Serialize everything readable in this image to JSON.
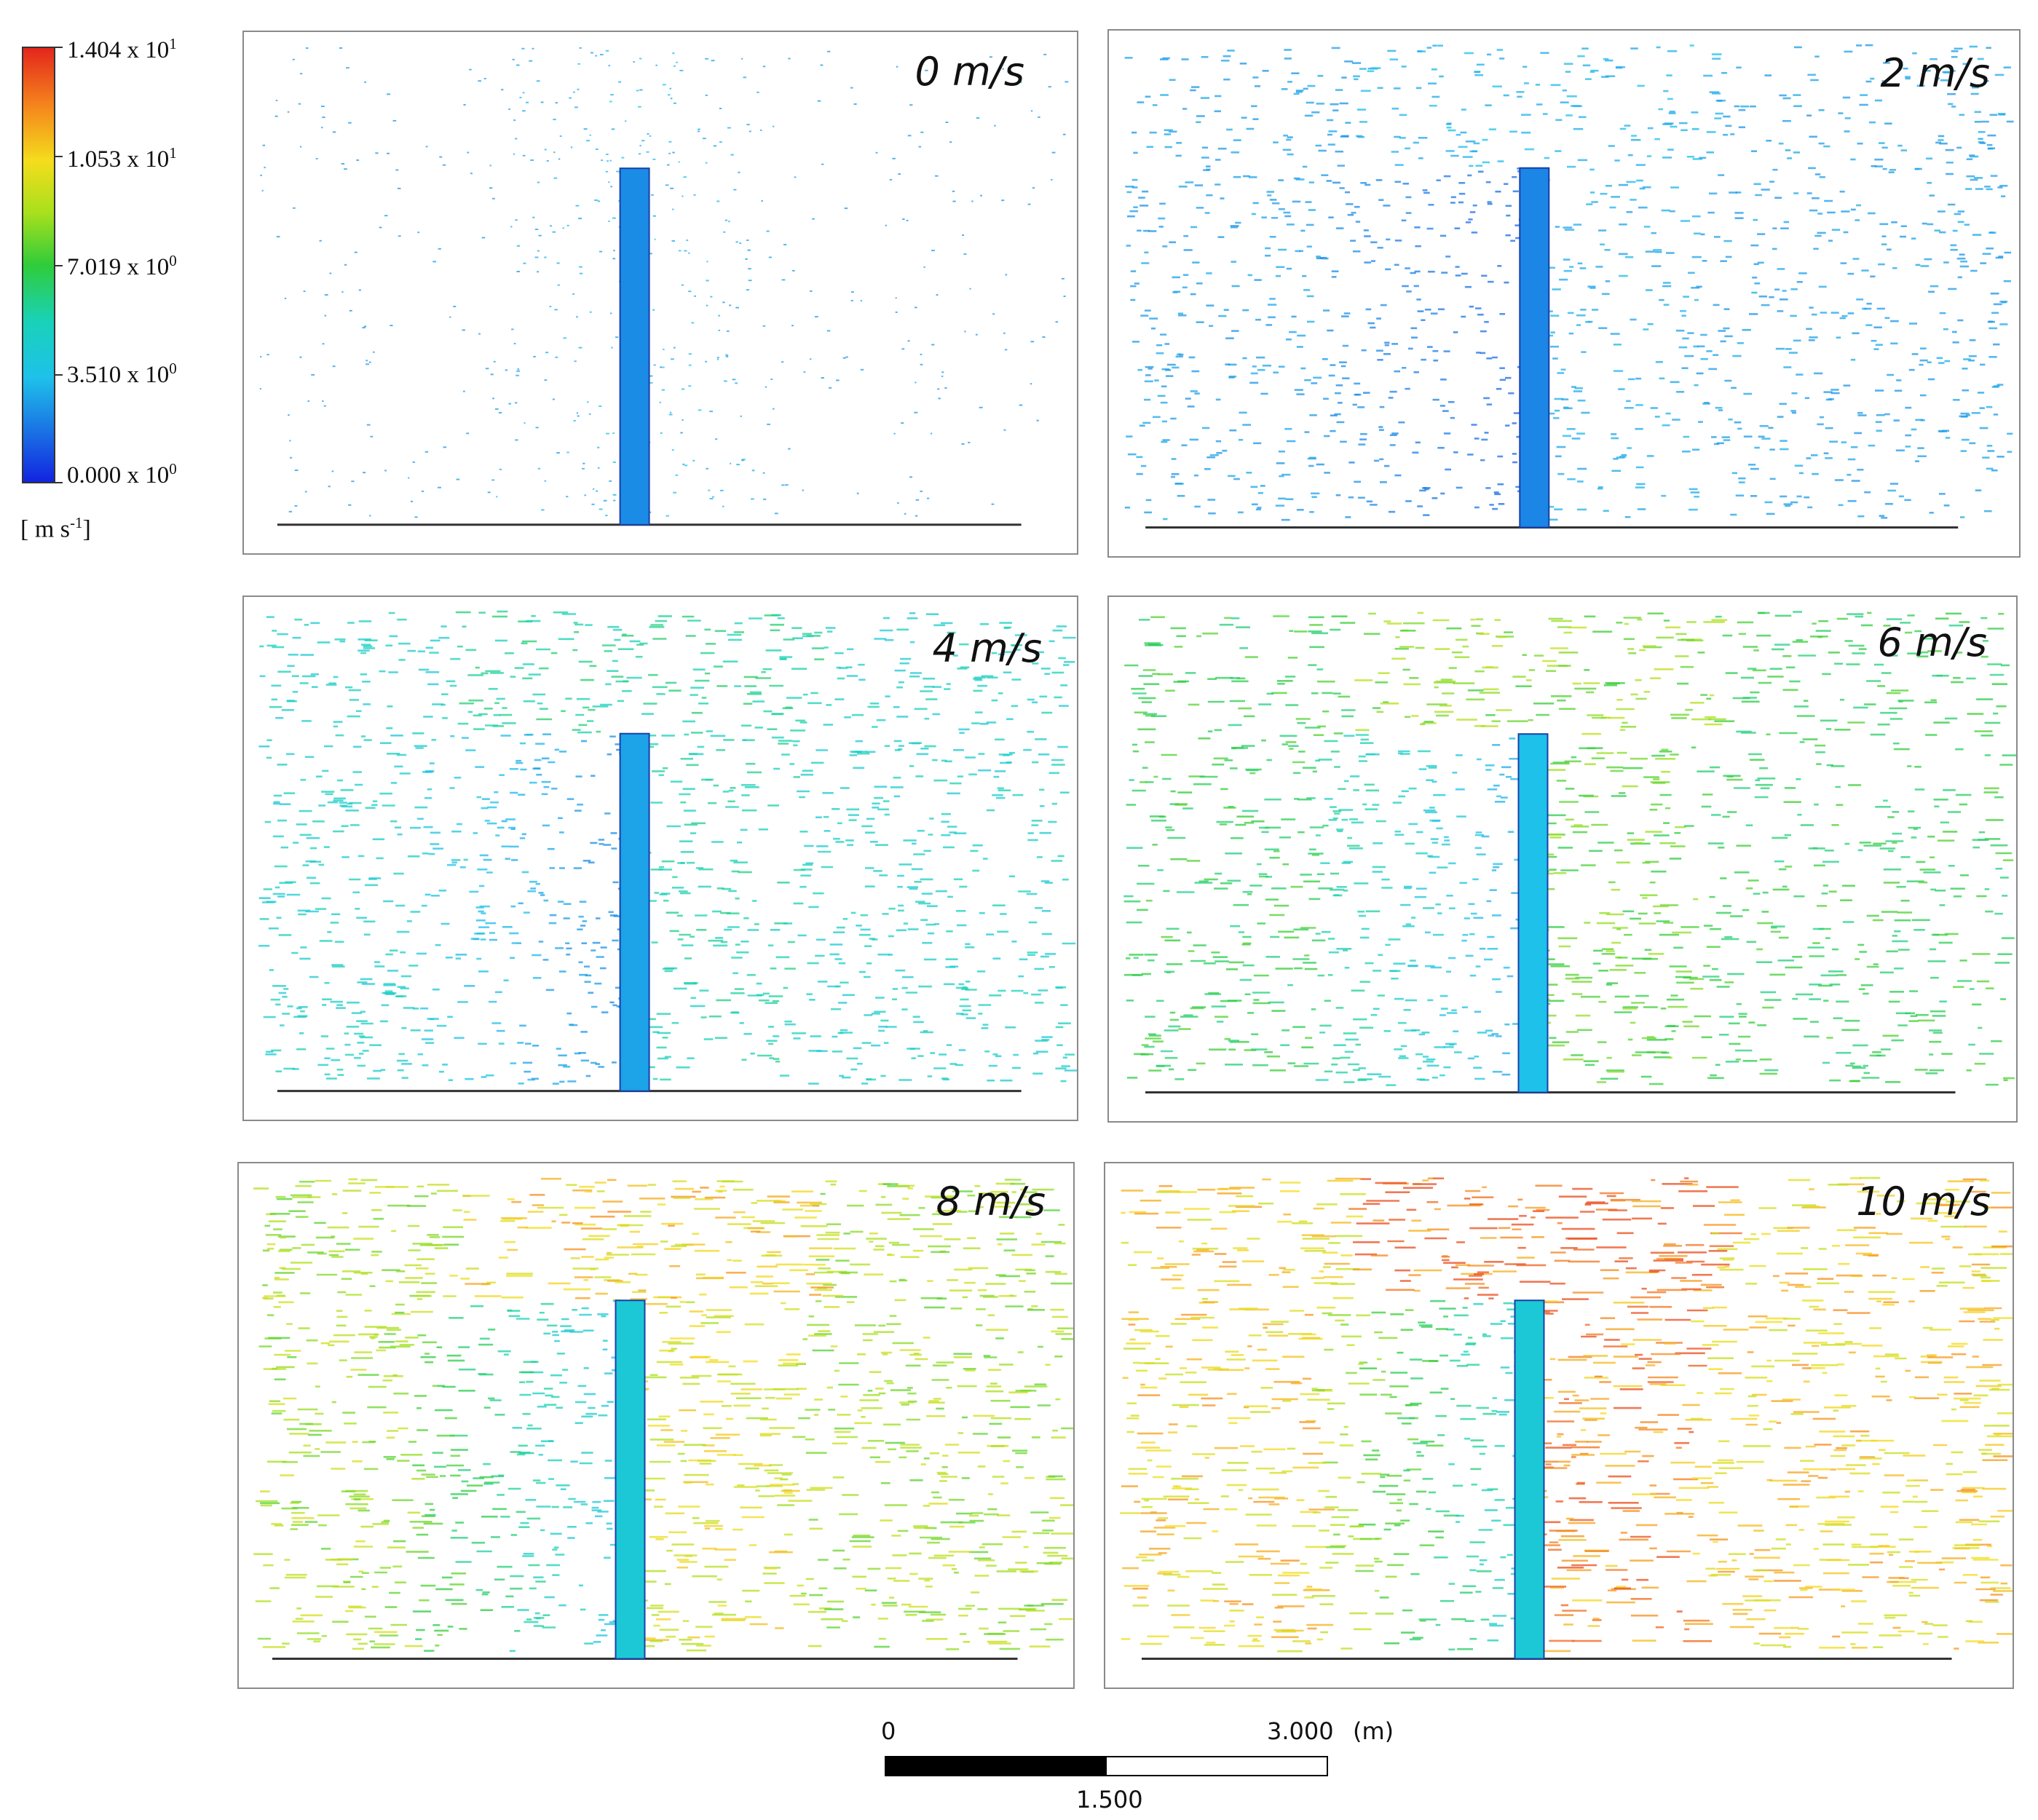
{
  "legend": {
    "labels": [
      {
        "mantissa": "1.404 x 10",
        "exponent": "1",
        "value": 14.04
      },
      {
        "mantissa": "1.053 x 10",
        "exponent": "1",
        "value": 10.53
      },
      {
        "mantissa": "7.019 x 10",
        "exponent": "0",
        "value": 7.019
      },
      {
        "mantissa": "3.510 x 10",
        "exponent": "0",
        "value": 3.51
      },
      {
        "mantissa": "0.000 x 10",
        "exponent": "0",
        "value": 0.0
      }
    ],
    "unit_prefix": "[ m s",
    "unit_exponent": "-1",
    "unit_suffix": "]",
    "colors": [
      "#e4261c",
      "#f58a1c",
      "#f4dd1c",
      "#a8e01c",
      "#2fcc3a",
      "#19d2b8",
      "#1ec1ea",
      "#1a74e4",
      "#1224e0"
    ]
  },
  "panels": [
    {
      "title": "0 m/s",
      "wind_speed": 0
    },
    {
      "title": "2 m/s",
      "wind_speed": 2
    },
    {
      "title": "4 m/s",
      "wind_speed": 4
    },
    {
      "title": "6 m/s",
      "wind_speed": 6
    },
    {
      "title": "8 m/s",
      "wind_speed": 8
    },
    {
      "title": "10 m/s",
      "wind_speed": 10
    }
  ],
  "scale_bar": {
    "label_start": "0",
    "label_mid": "1.500",
    "label_end": "3.000",
    "unit": "(m)"
  }
}
